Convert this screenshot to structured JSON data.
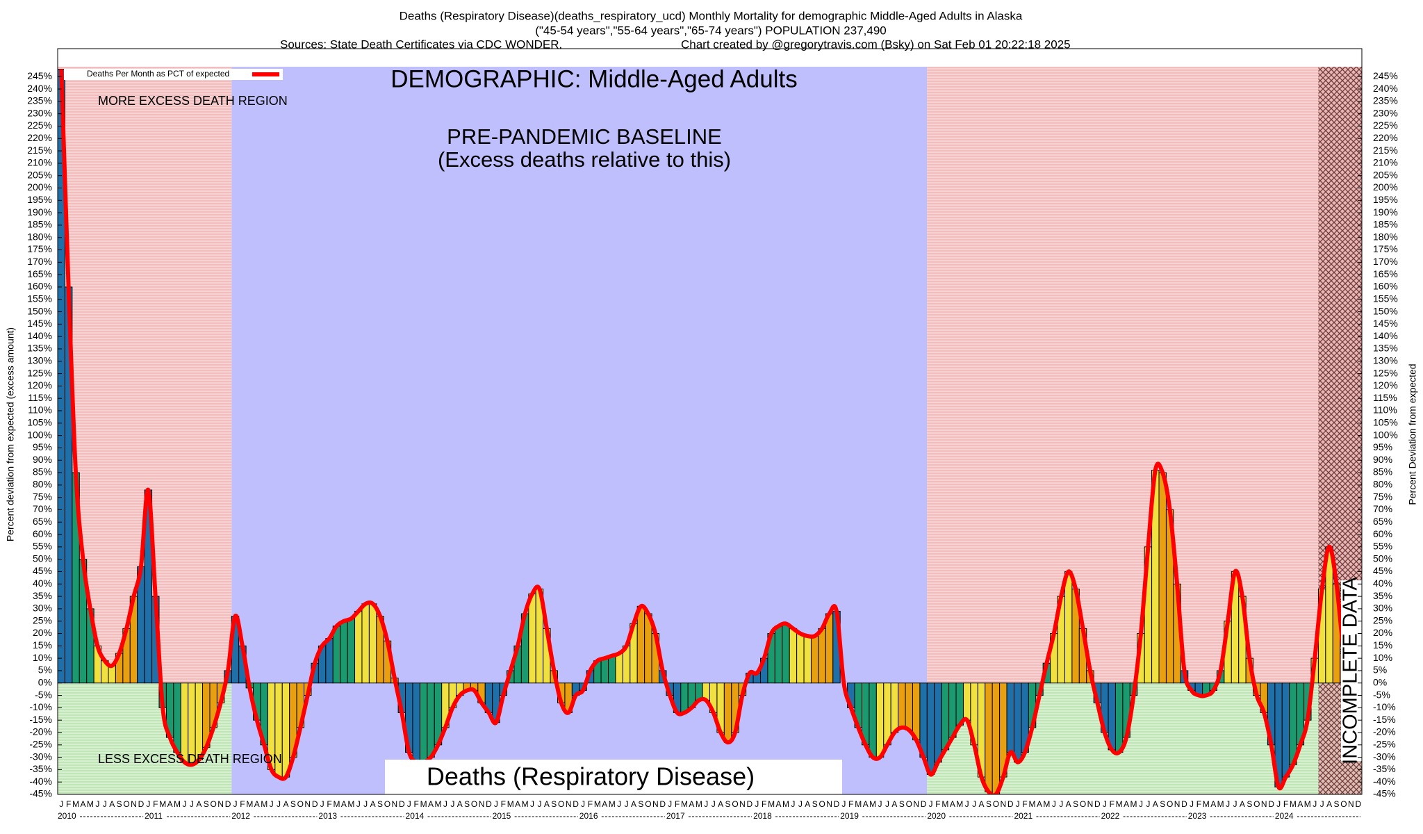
{
  "chart_data": {
    "type": "bar",
    "title": "Deaths (Respiratory Disease)(deaths_respiratory_ucd) Monthly Mortality for demographic Middle-Aged Adults in Alaska",
    "subtitle": "(\"45-54 years\",\"55-64 years\",\"65-74 years\") POPULATION 237,490",
    "sources": "Sources: State Death Certificates via CDC WONDER.",
    "credit": "Chart created by @gregorytravis.com (Bsky) on Sat Feb 01 20:22:18 2025",
    "annotations": {
      "demographic": "DEMOGRAPHIC: Middle-Aged Adults",
      "baseline": "PRE-PANDEMIC BASELINE",
      "baseline_note": "(Excess deaths relative to this)",
      "more": "MORE EXCESS DEATH REGION",
      "less": "LESS EXCESS DEATH REGION",
      "cause": "Deaths (Respiratory Disease)",
      "incomplete": "INCOMPLETE DATA"
    },
    "ylabel": "Percent deviation from expected (excess amount)",
    "y2label": "Percent Deviation from expected",
    "bar_colors": [
      "#1f6fa8",
      "#1a9a6e",
      "#f0e040",
      "#e8a010"
    ],
    "categories": [
      "J",
      "F",
      "M",
      "A",
      "M",
      "J",
      "J",
      "A",
      "S",
      "O",
      "N",
      "D",
      "J",
      "F",
      "M",
      "A",
      "M",
      "J",
      "J",
      "A",
      "S",
      "O",
      "N",
      "D",
      "J",
      "F",
      "M",
      "A",
      "M",
      "J",
      "J",
      "A",
      "S",
      "O",
      "N",
      "D",
      "J",
      "F",
      "M",
      "A",
      "M",
      "J",
      "J",
      "A",
      "S",
      "O",
      "N",
      "D",
      "J",
      "F",
      "M",
      "A",
      "M",
      "J",
      "J",
      "A",
      "S",
      "O",
      "N",
      "D",
      "J",
      "F",
      "M",
      "A",
      "M",
      "J",
      "J",
      "A",
      "S",
      "O",
      "N",
      "D",
      "J",
      "F",
      "M",
      "A",
      "M",
      "J",
      "J",
      "A",
      "S",
      "O",
      "N",
      "D",
      "J",
      "F",
      "M",
      "A",
      "M",
      "J",
      "J",
      "A",
      "S",
      "O",
      "N",
      "D",
      "J",
      "F",
      "M",
      "A",
      "M",
      "J",
      "J",
      "A",
      "S",
      "O",
      "N",
      "D",
      "J",
      "F",
      "M",
      "A",
      "M",
      "J",
      "J",
      "A",
      "S",
      "O",
      "N",
      "D",
      "J",
      "F",
      "M",
      "A",
      "M",
      "J",
      "J",
      "A",
      "S",
      "O",
      "N",
      "D",
      "J",
      "F",
      "M",
      "A",
      "M",
      "J",
      "J",
      "A",
      "S",
      "O",
      "N",
      "D",
      "J",
      "F",
      "M",
      "A",
      "M",
      "J",
      "J",
      "A",
      "S",
      "O",
      "N",
      "D",
      "J",
      "F",
      "M",
      "A",
      "M",
      "J",
      "J",
      "A",
      "S",
      "O",
      "N",
      "D",
      "J",
      "F",
      "M",
      "A",
      "M",
      "J",
      "J",
      "A",
      "S",
      "O",
      "N",
      "D"
    ],
    "years": [
      "2010",
      "2011",
      "2012",
      "2013",
      "2014",
      "2015",
      "2016",
      "2017",
      "2018",
      "2019",
      "2020",
      "2021",
      "2022",
      "2023",
      "2024"
    ],
    "series": [
      {
        "name": "Deaths Per Month as PCT of expected",
        "color": "#ff0000",
        "values": [
          248,
          160,
          85,
          50,
          30,
          15,
          9,
          7,
          12,
          22,
          35,
          47,
          78,
          35,
          -10,
          -22,
          -28,
          -32,
          -33,
          -31,
          -26,
          -18,
          -8,
          5,
          27,
          15,
          -2,
          -15,
          -25,
          -35,
          -38,
          -38,
          -30,
          -18,
          -5,
          8,
          15,
          18,
          23,
          25,
          26,
          29,
          32,
          32,
          27,
          17,
          2,
          -12,
          -28,
          -32,
          -32,
          -30,
          -25,
          -18,
          -10,
          -5,
          -3,
          -3,
          -8,
          -12,
          -16,
          -5,
          5,
          15,
          28,
          36,
          38,
          22,
          5,
          -8,
          -12,
          -5,
          -3,
          5,
          9,
          10,
          11,
          12,
          15,
          24,
          31,
          28,
          20,
          5,
          -5,
          -12,
          -12,
          -10,
          -7,
          -7,
          -12,
          -20,
          -24,
          -20,
          -5,
          4,
          4,
          10,
          20,
          23,
          24,
          22,
          20,
          19,
          19,
          22,
          28,
          29,
          0,
          -10,
          -18,
          -25,
          -30,
          -30,
          -25,
          -20,
          -18,
          -19,
          -23,
          -30,
          -37,
          -32,
          -27,
          -22,
          -17,
          -15,
          -25,
          -38,
          -44,
          -45,
          -38,
          -28,
          -32,
          -28,
          -18,
          -5,
          8,
          20,
          35,
          45,
          38,
          22,
          5,
          -8,
          -20,
          -27,
          -28,
          -22,
          -5,
          20,
          55,
          86,
          85,
          70,
          40,
          5,
          -3,
          -5,
          -5,
          -3,
          5,
          25,
          45,
          35,
          10,
          -5,
          -12,
          -25,
          -42,
          -38,
          -33,
          -25,
          -15,
          10,
          38,
          55,
          40,
          12,
          -5,
          -10
        ]
      }
    ],
    "ylim": [
      -45,
      249
    ],
    "yticks": [
      {
        "value": -45,
        "label": "-45%"
      },
      {
        "value": -40,
        "label": "-40%"
      },
      {
        "value": -35,
        "label": "-35%"
      },
      {
        "value": -30,
        "label": "-30%"
      },
      {
        "value": -25,
        "label": "-25%"
      },
      {
        "value": -20,
        "label": "-20%"
      },
      {
        "value": -15,
        "label": "-15%"
      },
      {
        "value": -10,
        "label": "-10%"
      },
      {
        "value": -5,
        "label": "-5%"
      },
      {
        "value": 0,
        "label": "0%"
      },
      {
        "value": 5,
        "label": "5%"
      },
      {
        "value": 10,
        "label": "10%"
      },
      {
        "value": 15,
        "label": "15%"
      },
      {
        "value": 20,
        "label": "20%"
      },
      {
        "value": 25,
        "label": "25%"
      },
      {
        "value": 30,
        "label": "30%"
      },
      {
        "value": 35,
        "label": "35%"
      },
      {
        "value": 40,
        "label": "40%"
      },
      {
        "value": 45,
        "label": "45%"
      },
      {
        "value": 50,
        "label": "50%"
      },
      {
        "value": 55,
        "label": "55%"
      },
      {
        "value": 60,
        "label": "60%"
      },
      {
        "value": 65,
        "label": "65%"
      },
      {
        "value": 70,
        "label": "70%"
      },
      {
        "value": 75,
        "label": "75%"
      },
      {
        "value": 80,
        "label": "80%"
      },
      {
        "value": 85,
        "label": "85%"
      },
      {
        "value": 90,
        "label": "90%"
      },
      {
        "value": 95,
        "label": "95%"
      },
      {
        "value": 100,
        "label": "100%"
      },
      {
        "value": 105,
        "label": "105%"
      },
      {
        "value": 110,
        "label": "110%"
      },
      {
        "value": 115,
        "label": "115%"
      },
      {
        "value": 120,
        "label": "120%"
      },
      {
        "value": 125,
        "label": "125%"
      },
      {
        "value": 130,
        "label": "130%"
      },
      {
        "value": 135,
        "label": "135%"
      },
      {
        "value": 140,
        "label": "140%"
      },
      {
        "value": 145,
        "label": "145%"
      },
      {
        "value": 150,
        "label": "150%"
      },
      {
        "value": 155,
        "label": "155%"
      },
      {
        "value": 160,
        "label": "160%"
      },
      {
        "value": 165,
        "label": "165%"
      },
      {
        "value": 170,
        "label": "170%"
      },
      {
        "value": 175,
        "label": "175%"
      },
      {
        "value": 180,
        "label": "180%"
      },
      {
        "value": 185,
        "label": "185%"
      },
      {
        "value": 190,
        "label": "190%"
      },
      {
        "value": 195,
        "label": "195%"
      },
      {
        "value": 200,
        "label": "200%"
      },
      {
        "value": 205,
        "label": "205%"
      },
      {
        "value": 210,
        "label": "210%"
      },
      {
        "value": 215,
        "label": "215%"
      },
      {
        "value": 220,
        "label": "220%"
      },
      {
        "value": 225,
        "label": "225%"
      },
      {
        "value": 230,
        "label": "230%"
      },
      {
        "value": 235,
        "label": "235%"
      },
      {
        "value": 240,
        "label": "240%"
      },
      {
        "value": 245,
        "label": "245%"
      }
    ],
    "legend": "top-left"
  }
}
